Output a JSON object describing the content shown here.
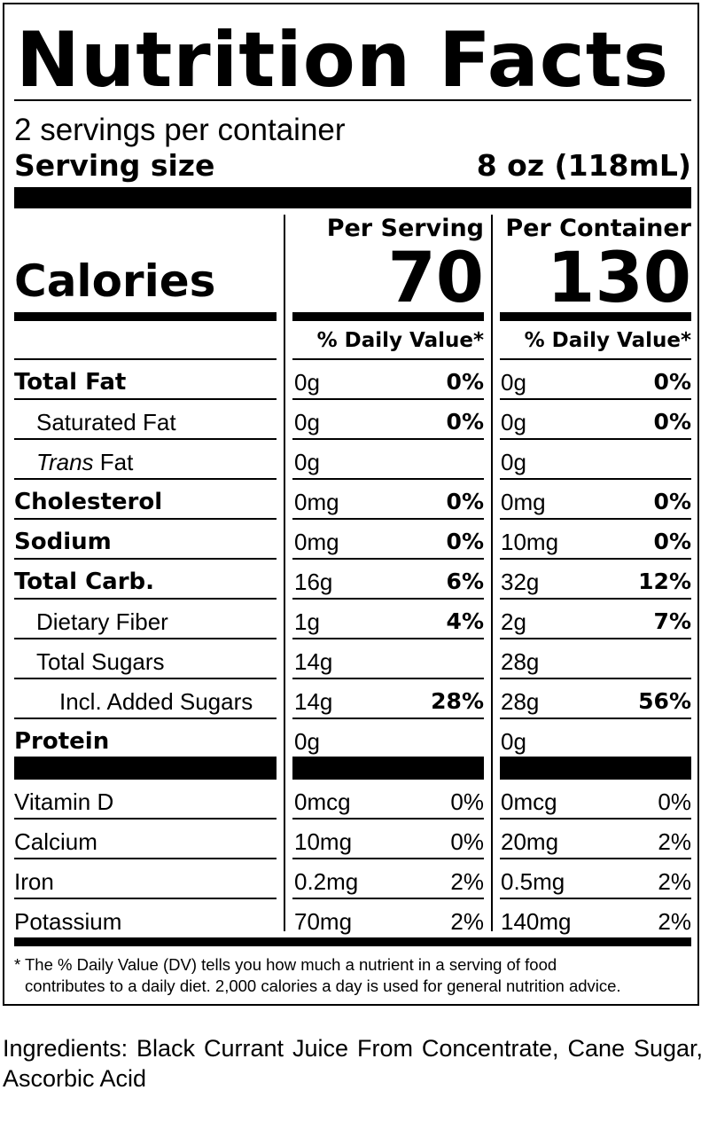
{
  "title": "Nutrition Facts",
  "servings_per_container": "2 servings per container",
  "serving_size_label": "Serving size",
  "serving_size_value": "8 oz (118mL)",
  "columns": {
    "per_serving": "Per Serving",
    "per_container": "Per Container"
  },
  "calories_label": "Calories",
  "calories": {
    "per_serving": "70",
    "per_container": "130"
  },
  "dv_header": "% Daily Value*",
  "nutrients": [
    {
      "name": "Total Fat",
      "style": "bold",
      "s_amt": "0g",
      "s_dv": "0%",
      "c_amt": "0g",
      "c_dv": "0%"
    },
    {
      "name": "Saturated Fat",
      "style": "indent1",
      "s_amt": "0g",
      "s_dv": "0%",
      "c_amt": "0g",
      "c_dv": "0%"
    },
    {
      "name_italic": "Trans",
      "name": " Fat",
      "style": "indent1",
      "s_amt": "0g",
      "s_dv": "",
      "c_amt": "0g",
      "c_dv": ""
    },
    {
      "name": "Cholesterol",
      "style": "bold",
      "s_amt": "0mg",
      "s_dv": "0%",
      "c_amt": "0mg",
      "c_dv": "0%"
    },
    {
      "name": "Sodium",
      "style": "bold",
      "s_amt": "0mg",
      "s_dv": "0%",
      "c_amt": "10mg",
      "c_dv": "0%"
    },
    {
      "name": "Total Carb.",
      "style": "bold",
      "s_amt": "16g",
      "s_dv": "6%",
      "c_amt": "32g",
      "c_dv": "12%"
    },
    {
      "name": "Dietary Fiber",
      "style": "indent1",
      "s_amt": "1g",
      "s_dv": "4%",
      "c_amt": "2g",
      "c_dv": "7%"
    },
    {
      "name": "Total Sugars",
      "style": "indent1",
      "s_amt": "14g",
      "s_dv": "",
      "c_amt": "28g",
      "c_dv": ""
    },
    {
      "name": "Incl. Added Sugars",
      "style": "indent2",
      "s_amt": "14g",
      "s_dv": "28%",
      "c_amt": "28g",
      "c_dv": "56%"
    },
    {
      "name": "Protein",
      "style": "bold",
      "s_amt": "0g",
      "s_dv": "",
      "c_amt": "0g",
      "c_dv": ""
    }
  ],
  "vitamins": [
    {
      "name": "Vitamin D",
      "s_amt": "0mcg",
      "s_dv": "0%",
      "c_amt": "0mcg",
      "c_dv": "0%"
    },
    {
      "name": "Calcium",
      "s_amt": "10mg",
      "s_dv": "0%",
      "c_amt": "20mg",
      "c_dv": "2%"
    },
    {
      "name": "Iron",
      "s_amt": "0.2mg",
      "s_dv": "2%",
      "c_amt": "0.5mg",
      "c_dv": "2%"
    },
    {
      "name": "Potassium",
      "s_amt": "70mg",
      "s_dv": "2%",
      "c_amt": "140mg",
      "c_dv": "2%"
    }
  ],
  "footnote_line1": "* The % Daily Value (DV) tells you how much a nutrient in a serving of food",
  "footnote_line2": "contributes to a daily diet. 2,000 calories a day is used for general nutrition advice.",
  "ingredients": "Ingredients: Black Currant Juice From Concentrate, Cane Sugar, Ascorbic Acid"
}
